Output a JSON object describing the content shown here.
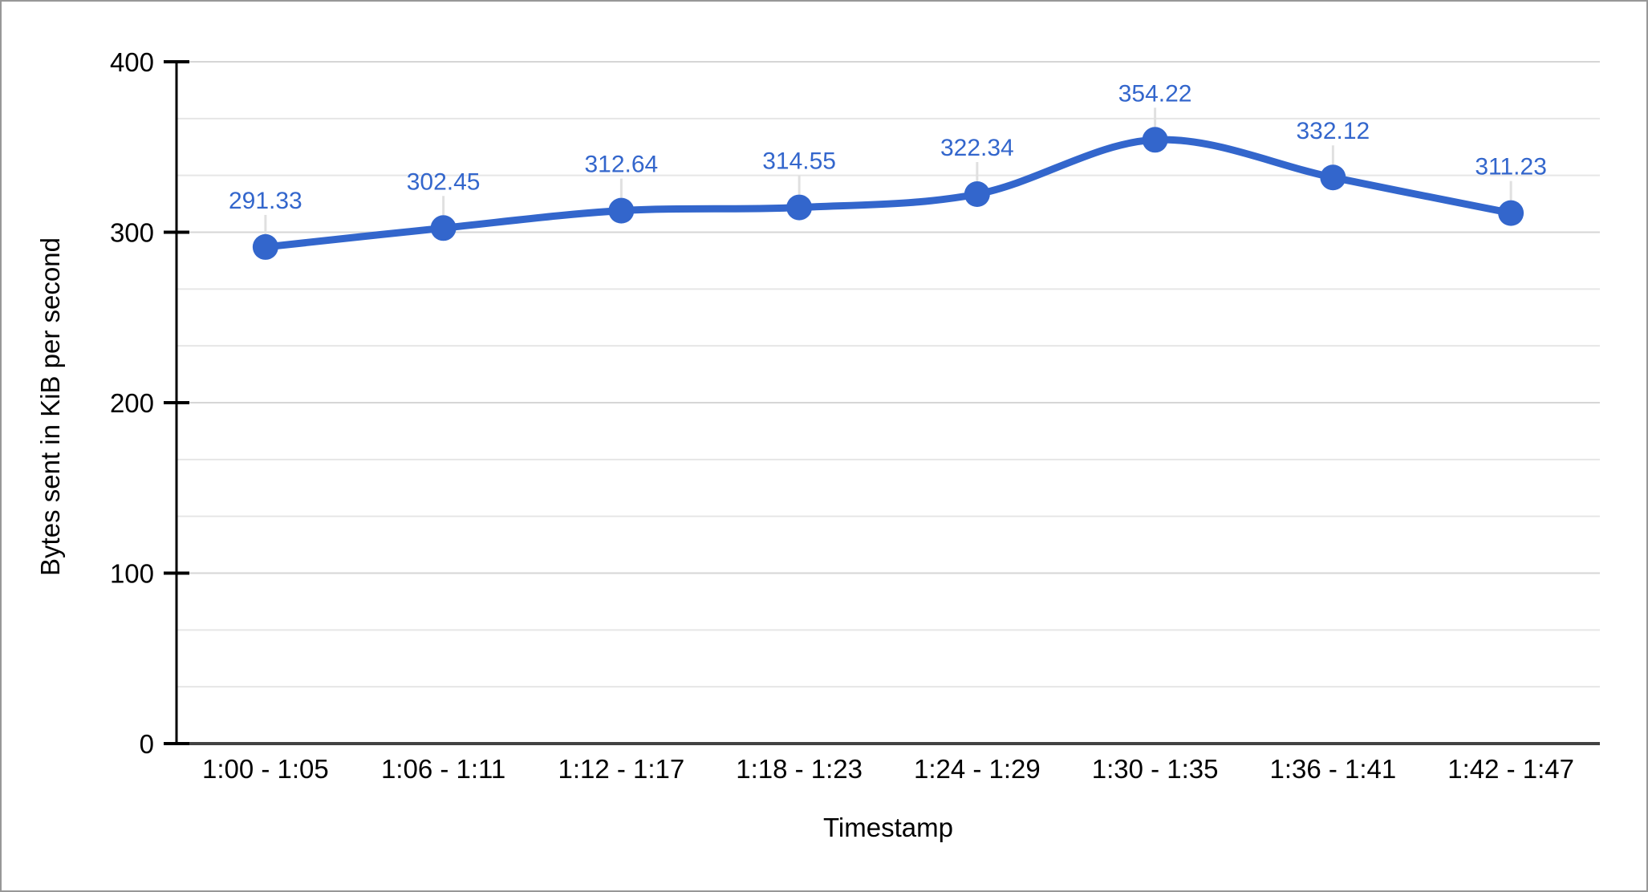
{
  "window": {
    "background": "#ffffff",
    "border_color": "#979797"
  },
  "chart_data": {
    "type": "line",
    "smooth": true,
    "title": "",
    "xlabel": "Timestamp",
    "ylabel": "Bytes sent in KiB per second",
    "categories": [
      "1:00 - 1:05",
      "1:06 - 1:11",
      "1:12 - 1:17",
      "1:18 - 1:23",
      "1:24 - 1:29",
      "1:30 - 1:35",
      "1:36 - 1:41",
      "1:42 - 1:47"
    ],
    "series": [
      {
        "name": "Bytes sent",
        "values": [
          291.33,
          302.45,
          312.64,
          314.55,
          322.34,
          354.22,
          332.12,
          311.23
        ],
        "data_labels": [
          "291.33",
          "302.45",
          "312.64",
          "314.55",
          "322.34",
          "354.22",
          "332.12",
          "311.23"
        ]
      }
    ],
    "ylim": [
      0,
      400
    ],
    "yticks": [
      0,
      100,
      200,
      300,
      400
    ],
    "minor_gridline_divisions": 3,
    "grid": true,
    "legend": "none",
    "markers": true,
    "data_labels_shown": true,
    "colors": {
      "line": "#3366cc",
      "marker": "#3366cc",
      "data_label": "#3366cc",
      "major_gridline": "#d6d6d6",
      "minor_gridline": "#e6e6e6",
      "leader_line": "#e0e0e0",
      "baseline": "#424242",
      "axis": "#000000",
      "text": "#000000"
    }
  }
}
